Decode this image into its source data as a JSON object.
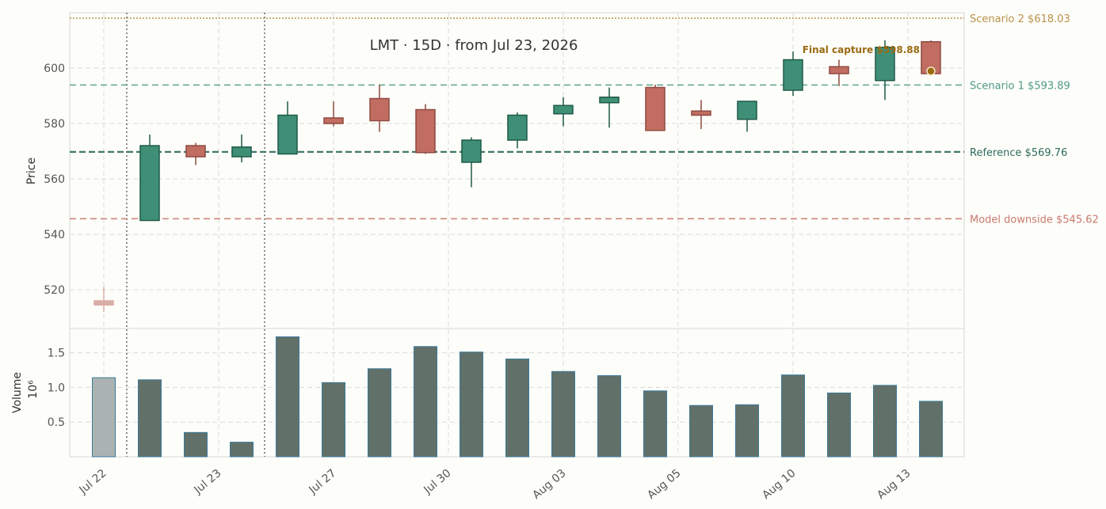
{
  "chart_data": {
    "type": "candlestick",
    "title": "LMT  ·  15D  ·  from Jul 23, 2026",
    "ylabel": "Price",
    "volume_label": "Volume",
    "volume_scale_label": "10⁶",
    "price_ylim": [
      506,
      620
    ],
    "volume_ylim": [
      0,
      1.85
    ],
    "price_ticks": [
      520,
      540,
      560,
      580,
      600
    ],
    "volume_ticks": [
      "0.5",
      "1.0",
      "1.5"
    ],
    "x_tick_labels": [
      {
        "index": 0,
        "label": "Jul 22"
      },
      {
        "index": 2.5,
        "label": "Jul 23"
      },
      {
        "index": 5,
        "label": "Jul 27"
      },
      {
        "index": 7.5,
        "label": "Jul 30"
      },
      {
        "index": 10,
        "label": "Aug 03"
      },
      {
        "index": 12.5,
        "label": "Aug 05"
      },
      {
        "index": 15,
        "label": "Aug 10"
      },
      {
        "index": 17.5,
        "label": "Aug 13"
      }
    ],
    "candles": [
      {
        "open": 514.5,
        "high": 521,
        "low": 512,
        "close": 516,
        "volume": 1.14,
        "pre": true
      },
      {
        "open": 545,
        "high": 576,
        "low": 545,
        "close": 572,
        "volume": 1.11
      },
      {
        "open": 572,
        "high": 573,
        "low": 565,
        "close": 568,
        "volume": 0.35
      },
      {
        "open": 568,
        "high": 576,
        "low": 566,
        "close": 571.5,
        "volume": 0.21
      },
      {
        "open": 569,
        "high": 588,
        "low": 569,
        "close": 583,
        "volume": 1.73
      },
      {
        "open": 582,
        "high": 588,
        "low": 579,
        "close": 580,
        "volume": 1.07
      },
      {
        "open": 589,
        "high": 594,
        "low": 577,
        "close": 581,
        "volume": 1.27
      },
      {
        "open": 585,
        "high": 587,
        "low": 569,
        "close": 569.5,
        "volume": 1.59
      },
      {
        "open": 566,
        "high": 575,
        "low": 557,
        "close": 574,
        "volume": 1.51
      },
      {
        "open": 574,
        "high": 584,
        "low": 571,
        "close": 583,
        "volume": 1.41
      },
      {
        "open": 583.5,
        "high": 589.5,
        "low": 579,
        "close": 586.5,
        "volume": 1.23
      },
      {
        "open": 587.5,
        "high": 593,
        "low": 578.5,
        "close": 589.5,
        "volume": 1.17
      },
      {
        "open": 593,
        "high": 594,
        "low": 577.5,
        "close": 577.5,
        "volume": 0.95
      },
      {
        "open": 584.5,
        "high": 588.5,
        "low": 578,
        "close": 583,
        "volume": 0.74
      },
      {
        "open": 581.5,
        "high": 588,
        "low": 577,
        "close": 588,
        "volume": 0.75
      },
      {
        "open": 592,
        "high": 606,
        "low": 590,
        "close": 603,
        "volume": 1.18
      },
      {
        "open": 600.5,
        "high": 603,
        "low": 593.5,
        "close": 598,
        "volume": 0.92
      },
      {
        "open": 595.5,
        "high": 610,
        "low": 588.5,
        "close": 607.5,
        "volume": 1.03
      },
      {
        "open": 609.5,
        "high": 610,
        "low": 598,
        "close": 598,
        "volume": 0.8
      }
    ],
    "reference_lines": [
      {
        "label": "Scenario 2 $618.03",
        "value": 618.03,
        "color": "#b8924a",
        "style": "dotted"
      },
      {
        "label": "Scenario 1 $593.89",
        "value": 593.89,
        "color": "#4e9a87",
        "style": "dashed"
      },
      {
        "label": "Reference $569.76",
        "value": 569.76,
        "color": "#2e6b5d",
        "style": "dashed-bold"
      },
      {
        "label": "Model downside $545.62",
        "value": 545.62,
        "color": "#c97a70",
        "style": "dashed"
      }
    ],
    "vertical_markers": [
      0.5,
      3.5
    ],
    "final_capture": {
      "label": "Final capture $598.88",
      "value": 598.88,
      "index": 18,
      "color": "#9a6a12"
    },
    "colors": {
      "up": "#3f8f76",
      "up_edge": "#1f5a48",
      "down": "#c26d62",
      "down_edge": "#8e4a40",
      "pre": "#d9aea6",
      "volume": "#62706a",
      "volume_edge": "#3a7a9a",
      "volume_pre": "#aab3b1"
    }
  }
}
